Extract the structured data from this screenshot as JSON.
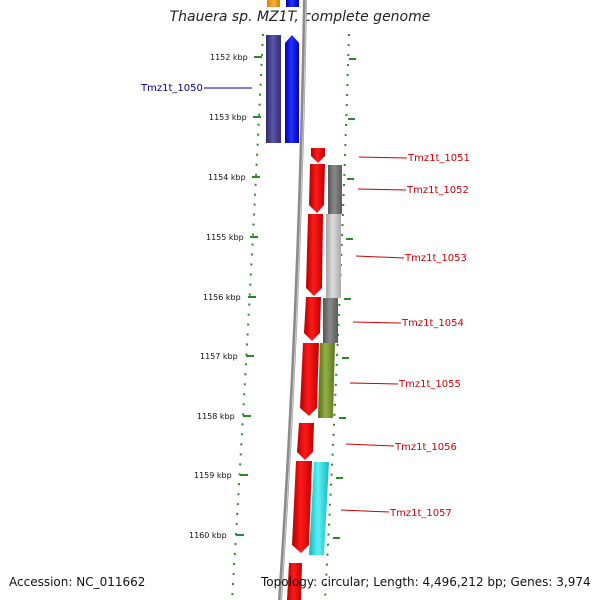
{
  "title": "Thauera sp. MZ1T, complete genome",
  "accession": "Accession: NC_011662",
  "topology": "Topology: circular; Length: 4,496,212 bp; Genes: 3,974",
  "kbp_ticks": [
    "1152 kbp",
    "1153 kbp",
    "1154 kbp",
    "1155 kbp",
    "1156 kbp",
    "1157 kbp",
    "1158 kbp",
    "1159 kbp",
    "1160 kbp"
  ],
  "gene_labels": [
    {
      "name": "Tmz1t_1050",
      "color": "#000099"
    },
    {
      "name": "Tmz1t_1051",
      "color": "#cc0000"
    },
    {
      "name": "Tmz1t_1052",
      "color": "#cc0000"
    },
    {
      "name": "Tmz1t_1053",
      "color": "#cc0000"
    },
    {
      "name": "Tmz1t_1054",
      "color": "#cc0000"
    },
    {
      "name": "Tmz1t_1055",
      "color": "#cc0000"
    },
    {
      "name": "Tmz1t_1056",
      "color": "#cc0000"
    },
    {
      "name": "Tmz1t_1057",
      "color": "#cc0000"
    }
  ],
  "colors": {
    "forward_gene": "#ff0000",
    "reverse_gene": "#0000ff",
    "cog_purple": "#3d3a8a",
    "cog_gray_dark": "#666666",
    "cog_gray_light": "#bdbdbd",
    "cog_olive": "#6e8b2a",
    "cog_cyan": "#1ad3d9",
    "cog_orange": "#f29a1b",
    "backbone": "#888888",
    "tick_green": "#2a8a2a"
  }
}
